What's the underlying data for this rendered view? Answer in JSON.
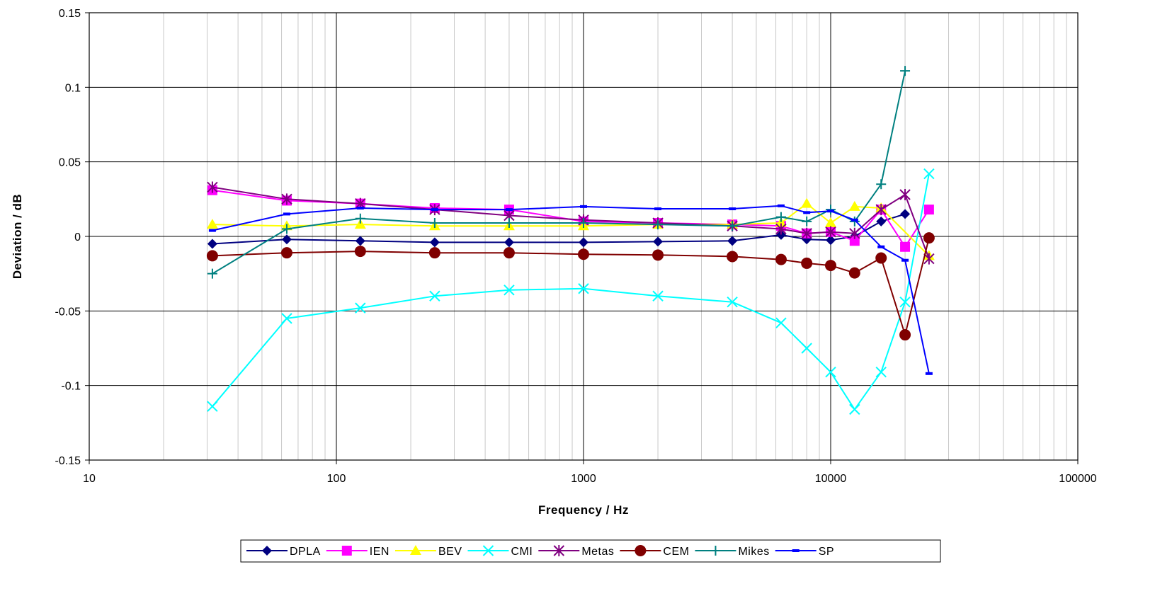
{
  "chart_data": {
    "type": "line",
    "xlabel": "Frequency / Hz",
    "ylabel": "Deviation / dB",
    "xscale": "log",
    "xlim": [
      10,
      100000
    ],
    "ylim": [
      -0.15,
      0.15
    ],
    "x_ticks": [
      "10",
      "100",
      "1000",
      "10000",
      "100000"
    ],
    "y_ticks": [
      "0.15",
      "0.1",
      "0.05",
      "0",
      "-0.05",
      "-0.1",
      "-0.15"
    ],
    "grid": true,
    "legend_position": "bottom",
    "x": [
      31.5,
      63,
      125,
      250,
      500,
      1000,
      2000,
      4000,
      6300,
      8000,
      10000,
      12500,
      16000,
      20000,
      25000
    ],
    "series": [
      {
        "name": "DPLA",
        "color": "#000080",
        "marker": "diamond",
        "values": [
          -0.005,
          -0.002,
          -0.003,
          -0.004,
          -0.004,
          -0.004,
          -0.0035,
          -0.003,
          0.001,
          -0.002,
          -0.0025,
          0.0,
          0.01,
          0.015,
          null
        ]
      },
      {
        "name": "IEN",
        "color": "#FF00FF",
        "marker": "square",
        "values": [
          0.031,
          0.024,
          0.022,
          0.019,
          0.018,
          0.01,
          0.009,
          0.008,
          0.007,
          0.002,
          0.003,
          -0.003,
          0.018,
          -0.007,
          0.018
        ]
      },
      {
        "name": "BEV",
        "color": "#FFFF00",
        "marker": "triangle",
        "values": [
          0.008,
          0.007,
          0.008,
          0.007,
          0.007,
          0.007,
          0.008,
          0.008,
          0.009,
          0.022,
          0.009,
          0.02,
          0.019,
          null,
          -0.013
        ]
      },
      {
        "name": "CMI",
        "color": "#00FFFF",
        "marker": "x",
        "values": [
          -0.114,
          -0.055,
          -0.048,
          -0.04,
          -0.036,
          -0.035,
          -0.04,
          -0.044,
          -0.058,
          -0.075,
          -0.091,
          -0.116,
          -0.091,
          -0.044,
          0.042
        ]
      },
      {
        "name": "Metas",
        "color": "#800080",
        "marker": "star",
        "values": [
          0.033,
          0.025,
          0.022,
          0.018,
          0.014,
          0.011,
          0.009,
          0.007,
          0.005,
          0.002,
          0.003,
          0.002,
          0.018,
          0.028,
          -0.015
        ]
      },
      {
        "name": "CEM",
        "color": "#800000",
        "marker": "circle",
        "values": [
          -0.013,
          -0.011,
          -0.01,
          -0.011,
          -0.011,
          -0.012,
          -0.0125,
          -0.0135,
          -0.0155,
          -0.018,
          -0.0195,
          -0.0245,
          -0.0145,
          -0.066,
          -0.001
        ]
      },
      {
        "name": "Mikes",
        "color": "#008080",
        "marker": "plus",
        "values": [
          -0.025,
          0.005,
          0.012,
          0.009,
          0.009,
          0.009,
          0.008,
          0.007,
          0.013,
          0.01,
          0.018,
          0.01,
          0.035,
          0.111,
          null
        ]
      },
      {
        "name": "SP",
        "color": "#0000FF",
        "marker": "dash",
        "values": [
          0.004,
          0.015,
          0.019,
          0.018,
          0.018,
          0.02,
          0.0185,
          0.0185,
          0.0205,
          0.016,
          0.017,
          0.011,
          -0.007,
          -0.016,
          -0.092
        ]
      }
    ]
  }
}
